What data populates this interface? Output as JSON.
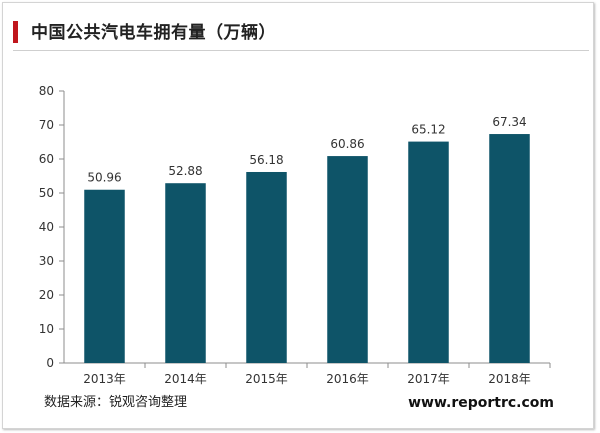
{
  "title": "中国公共汽电车拥有量（万辆）",
  "source": "数据来源：锐观咨询整理",
  "website": "www.reportrc.com",
  "chart_data": {
    "type": "bar",
    "categories": [
      "2013年",
      "2014年",
      "2015年",
      "2016年",
      "2017年",
      "2018年"
    ],
    "values": [
      50.96,
      52.88,
      56.18,
      60.86,
      65.12,
      67.34
    ],
    "value_labels": [
      "50.96",
      "52.88",
      "56.18",
      "60.86",
      "65.12",
      "67.34"
    ],
    "ylim": [
      0,
      80
    ],
    "yticks": [
      0,
      10,
      20,
      30,
      40,
      50,
      60,
      70,
      80
    ],
    "grid": false,
    "bar_color": "#0e5468"
  }
}
